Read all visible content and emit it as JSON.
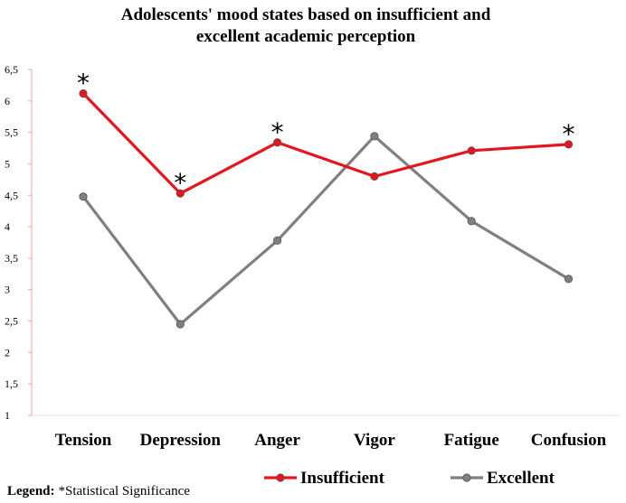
{
  "chart_data": {
    "type": "line",
    "title_lines": [
      "Adolescents' mood states based on insufficient and",
      "excellent academic perception"
    ],
    "categories": [
      "Tension",
      "Depression",
      "Anger",
      "Vigor",
      "Fatigue",
      "Confusion"
    ],
    "yticks": [
      "1",
      "1,5",
      "2",
      "2,5",
      "3",
      "3,5",
      "4",
      "4,5",
      "5",
      "5,5",
      "6",
      "6,5"
    ],
    "ylim": [
      1,
      6.5
    ],
    "grid": false,
    "series": [
      {
        "name": "Insufficient",
        "color": "#e8141c",
        "values": [
          6.12,
          4.53,
          5.34,
          4.8,
          5.21,
          5.31
        ]
      },
      {
        "name": "Excellent",
        "color": "#7f7f7f",
        "values": [
          4.48,
          2.45,
          3.78,
          5.44,
          4.09,
          3.17
        ]
      }
    ],
    "significance_marker": "*",
    "significant_categories": [
      "Tension",
      "Depression",
      "Anger",
      "Confusion"
    ],
    "legend_placement": "bottom"
  },
  "legend_note": {
    "label": "Legend:",
    "text": "*Statistical Significance"
  }
}
